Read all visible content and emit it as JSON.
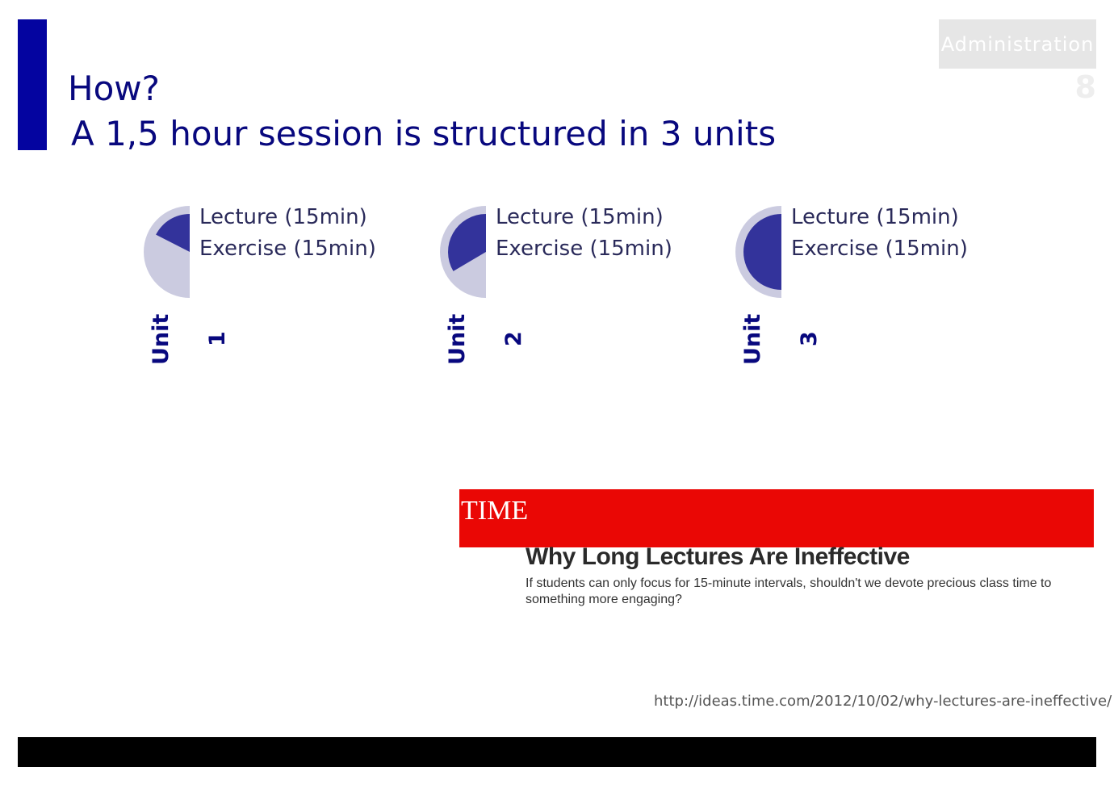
{
  "header": {
    "section": "Administration",
    "page_number": "8",
    "title_line1": "How?",
    "title_line2": "A 1,5 hour session is structured in 3 units"
  },
  "units": [
    {
      "label": "Unit 1",
      "lecture": "Lecture (15min)",
      "exercise": "Exercise (15min)",
      "progress": 0.35
    },
    {
      "label": "Unit 2",
      "lecture": "Lecture (15min)",
      "exercise": "Exercise (15min)",
      "progress": 0.67
    },
    {
      "label": "Unit 3",
      "lecture": "Lecture (15min)",
      "exercise": "Exercise (15min)",
      "progress": 1.0
    }
  ],
  "article": {
    "publication": "TIME",
    "headline": "Why Long Lectures Are Ineffective",
    "dek": "If students can only focus for 15-minute intervals, shouldn't we devote precious class time to something more engaging?"
  },
  "source_url": "http://ideas.time.com/2012/10/02/why-lectures-are-ineffective/",
  "colors": {
    "accent": "#0404a0",
    "pie_light": "#cbcbe0",
    "pie_dark": "#33339b",
    "time_red": "#ea0705"
  }
}
